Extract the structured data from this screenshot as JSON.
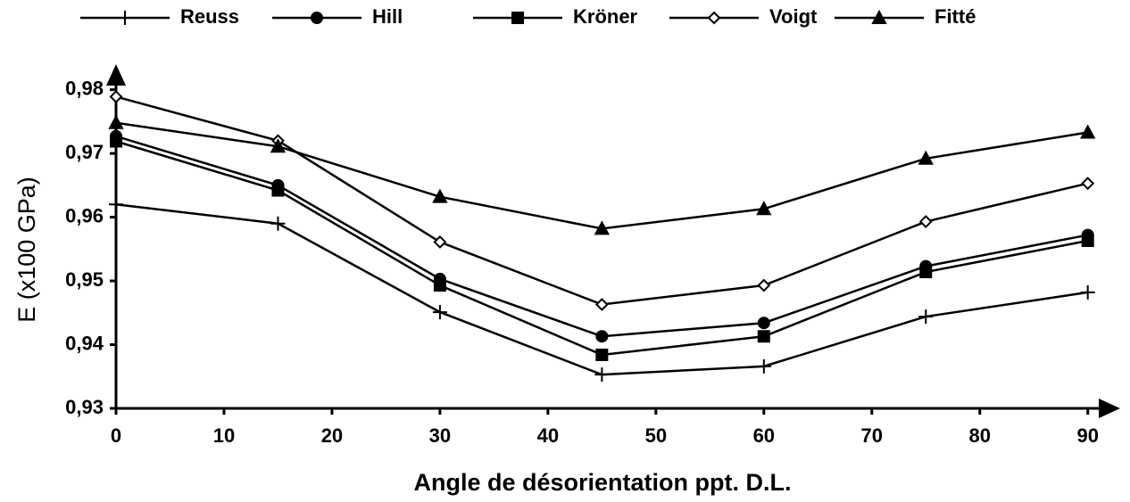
{
  "chart_data": {
    "type": "line",
    "x_label": "Angle de désorientation ppt. D.L.",
    "y_label": "E (x100 GPa)",
    "x": [
      0,
      15,
      30,
      45,
      60,
      75,
      90
    ],
    "series": [
      {
        "name": "Reuss",
        "color": "#000000",
        "marker": "plus",
        "values": [
          0.962,
          0.959,
          0.9451,
          0.9353,
          0.9366,
          0.9444,
          0.9482
        ]
      },
      {
        "name": "Hill",
        "color": "#000000",
        "marker": "circle",
        "values": [
          0.9727,
          0.965,
          0.9503,
          0.9413,
          0.9434,
          0.9523,
          0.9572
        ]
      },
      {
        "name": "Kröner",
        "color": "#000000",
        "marker": "square",
        "values": [
          0.9719,
          0.9642,
          0.9493,
          0.9384,
          0.9413,
          0.9514,
          0.9563
        ]
      },
      {
        "name": "Voigt",
        "color": "#000000",
        "marker": "diamond",
        "values": [
          0.9789,
          0.972,
          0.9561,
          0.9463,
          0.9493,
          0.9593,
          0.9653
        ]
      },
      {
        "name": "Fitté",
        "color": "#000000",
        "marker": "triangle",
        "values": [
          0.9748,
          0.9711,
          0.9632,
          0.9582,
          0.9613,
          0.9692,
          0.9733
        ]
      }
    ],
    "xlim": [
      0,
      93
    ],
    "ylim": [
      0.93,
      0.984
    ],
    "xticks": [
      0,
      10,
      20,
      30,
      40,
      50,
      60,
      70,
      80,
      90
    ],
    "yticks": [
      {
        "value": 0.93,
        "label": "0,93"
      },
      {
        "value": 0.94,
        "label": "0,94"
      },
      {
        "value": 0.95,
        "label": "0,95"
      },
      {
        "value": 0.96,
        "label": "0,96"
      },
      {
        "value": 0.97,
        "label": "0,97"
      },
      {
        "value": 0.98,
        "label": "0,98"
      }
    ],
    "legend": "top",
    "grid": false
  }
}
